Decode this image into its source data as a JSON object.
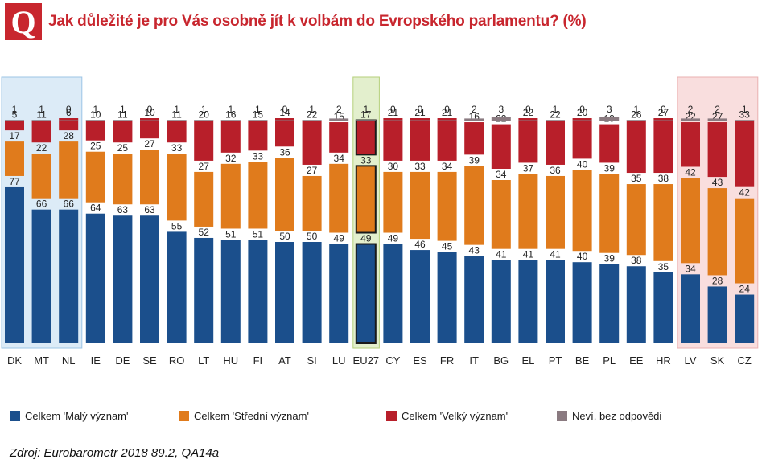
{
  "header": {
    "logo_letter": "Q",
    "title": "Jak důležité je pro Vás osobně jít k volbám do Evropského parlamentu? (%)"
  },
  "colors": {
    "small": "#1b4f8c",
    "medium": "#e07b1c",
    "large": "#b81f2a",
    "dontknow": "#8a7a80",
    "group_left_bg": "#dcebf7",
    "group_eu_bg": "#e3efcd",
    "group_right_bg": "#f9dede",
    "eu_outline": "#1a1a1a"
  },
  "chart_data": {
    "type": "bar",
    "stacked": true,
    "categories": [
      "DK",
      "MT",
      "NL",
      "IE",
      "DE",
      "SE",
      "RO",
      "LT",
      "HU",
      "FI",
      "AT",
      "SI",
      "LU",
      "EU27",
      "CY",
      "ES",
      "FR",
      "IT",
      "BG",
      "EL",
      "PT",
      "BE",
      "PL",
      "EE",
      "HR",
      "LV",
      "SK",
      "CZ"
    ],
    "series": [
      {
        "key": "small",
        "name": "Celkem 'Malý význam'",
        "values": [
          77,
          66,
          66,
          64,
          63,
          63,
          55,
          52,
          51,
          51,
          50,
          50,
          49,
          49,
          49,
          46,
          45,
          43,
          41,
          41,
          41,
          40,
          39,
          38,
          35,
          34,
          28,
          24
        ]
      },
      {
        "key": "medium",
        "name": "Celkem 'Střední význam'",
        "values": [
          17,
          22,
          28,
          25,
          25,
          27,
          33,
          27,
          32,
          33,
          36,
          27,
          34,
          33,
          30,
          33,
          34,
          39,
          34,
          37,
          36,
          40,
          39,
          35,
          38,
          42,
          43,
          42
        ]
      },
      {
        "key": "large",
        "name": "Celkem 'Velký význam'",
        "values": [
          5,
          11,
          6,
          10,
          11,
          10,
          11,
          20,
          16,
          15,
          14,
          22,
          15,
          17,
          21,
          21,
          21,
          16,
          22,
          22,
          22,
          20,
          19,
          26,
          27,
          22,
          27,
          33
        ]
      },
      {
        "key": "dontknow",
        "name": "Neví, bez odpovědi",
        "values": [
          1,
          1,
          0,
          1,
          1,
          0,
          1,
          1,
          1,
          1,
          0,
          1,
          2,
          1,
          0,
          0,
          0,
          2,
          3,
          0,
          1,
          0,
          3,
          1,
          0,
          2,
          2,
          1
        ]
      }
    ],
    "groups": [
      {
        "label": "left",
        "categories": [
          "DK",
          "MT",
          "NL"
        ]
      },
      {
        "label": "eu",
        "categories": [
          "EU27"
        ]
      },
      {
        "label": "right",
        "categories": [
          "LV",
          "SK",
          "CZ"
        ]
      }
    ],
    "highlight": "EU27",
    "legend_position": "bottom"
  },
  "source": "Zdroj: Eurobarometr 2018 89.2, QA14a"
}
